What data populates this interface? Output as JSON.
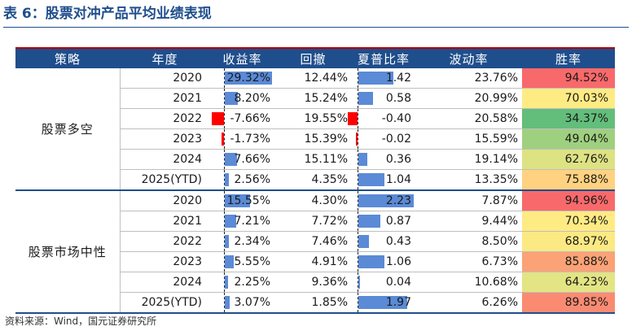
{
  "title": "表 6：股票对冲产品平均业绩表现",
  "headers": [
    "策略",
    "年度",
    "收益率",
    "回撤",
    "夏普比率",
    "波动率",
    "胜率"
  ],
  "groups": [
    {
      "name": "股票多空",
      "rows": [
        {
          "year": "2020",
          "ret": "29.32%",
          "ret_v": 29.32,
          "dd": "12.44%",
          "sharpe": "1.42",
          "sharpe_v": 1.42,
          "vol": "23.76%",
          "win": "94.52%",
          "win_color": "#f8696b"
        },
        {
          "year": "2021",
          "ret": "8.20%",
          "ret_v": 8.2,
          "dd": "15.24%",
          "sharpe": "0.58",
          "sharpe_v": 0.58,
          "vol": "20.99%",
          "win": "70.03%",
          "win_color": "#ffeb84"
        },
        {
          "year": "2022",
          "ret": "-7.66%",
          "ret_v": -7.66,
          "dd": "19.55%",
          "sharpe": "-0.40",
          "sharpe_v": -0.4,
          "vol": "20.58%",
          "win": "34.37%",
          "win_color": "#63be7b"
        },
        {
          "year": "2023",
          "ret": "-1.73%",
          "ret_v": -1.73,
          "dd": "15.39%",
          "sharpe": "-0.02",
          "sharpe_v": -0.02,
          "vol": "15.59%",
          "win": "49.04%",
          "win_color": "#9fd07f"
        },
        {
          "year": "2024",
          "ret": "7.66%",
          "ret_v": 7.66,
          "dd": "15.11%",
          "sharpe": "0.36",
          "sharpe_v": 0.36,
          "vol": "19.14%",
          "win": "62.76%",
          "win_color": "#dde283"
        },
        {
          "year": "2025(YTD)",
          "ret": "2.56%",
          "ret_v": 2.56,
          "dd": "4.35%",
          "sharpe": "1.04",
          "sharpe_v": 1.04,
          "vol": "13.35%",
          "win": "75.88%",
          "win_color": "#fed280"
        }
      ]
    },
    {
      "name": "股票市场中性",
      "rows": [
        {
          "year": "2020",
          "ret": "15.55%",
          "ret_v": 15.55,
          "dd": "4.30%",
          "sharpe": "2.23",
          "sharpe_v": 2.23,
          "vol": "7.87%",
          "win": "94.96%",
          "win_color": "#f8696b"
        },
        {
          "year": "2021",
          "ret": "7.21%",
          "ret_v": 7.21,
          "dd": "7.72%",
          "sharpe": "0.87",
          "sharpe_v": 0.87,
          "vol": "9.44%",
          "win": "70.34%",
          "win_color": "#ffeb84"
        },
        {
          "year": "2022",
          "ret": "2.34%",
          "ret_v": 2.34,
          "dd": "7.46%",
          "sharpe": "0.43",
          "sharpe_v": 0.43,
          "vol": "8.50%",
          "win": "68.97%",
          "win_color": "#fbe983"
        },
        {
          "year": "2023",
          "ret": "5.55%",
          "ret_v": 5.55,
          "dd": "4.91%",
          "sharpe": "1.06",
          "sharpe_v": 1.06,
          "vol": "6.73%",
          "win": "85.88%",
          "win_color": "#fba276"
        },
        {
          "year": "2024",
          "ret": "2.25%",
          "ret_v": 2.25,
          "dd": "9.36%",
          "sharpe": "0.04",
          "sharpe_v": 0.04,
          "vol": "10.68%",
          "win": "64.23%",
          "win_color": "#e3e483"
        },
        {
          "year": "2025(YTD)",
          "ret": "3.07%",
          "ret_v": 3.07,
          "dd": "1.85%",
          "sharpe": "1.97",
          "sharpe_v": 1.97,
          "vol": "6.26%",
          "win": "89.85%",
          "win_color": "#fa8b72"
        }
      ]
    }
  ],
  "colors": {
    "header_bg": "#1f4e8c",
    "bar_pos": "#5b8ad6",
    "bar_neg": "#ff0000"
  },
  "source": "资料来源：Wind，国元证券研究所"
}
